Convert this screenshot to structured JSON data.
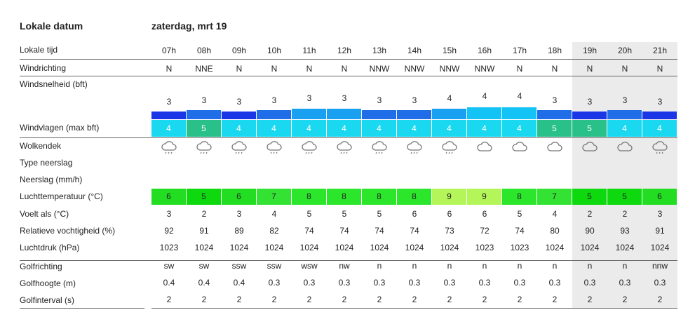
{
  "header": {
    "label": "Lokale datum",
    "date": "zaterdag, mrt 19"
  },
  "labels": {
    "time": "Lokale tijd",
    "wind_dir": "Windrichting",
    "wind_speed": "Windsnelheid (bft)",
    "gusts": "Windvlagen (max bft)",
    "clouds": "Wolkendek",
    "precip_type": "Type neerslag",
    "precip": "Neerslag (mm/h)",
    "temp": "Luchttemperatuur (°C)",
    "feels": "Voelt als (°C)",
    "humidity": "Relatieve vochtigheid (%)",
    "pressure": "Luchtdruk (hPa)",
    "wave_dir": "Golfrichting",
    "wave_height": "Golfhoogte (m)",
    "wave_interval": "Golfinterval (s)"
  },
  "hours": [
    "07h",
    "08h",
    "09h",
    "10h",
    "11h",
    "12h",
    "13h",
    "14h",
    "15h",
    "16h",
    "17h",
    "18h",
    "19h",
    "20h",
    "21h"
  ],
  "night_from_index": 12,
  "wind_dir": [
    "N",
    "NNE",
    "N",
    "N",
    "N",
    "N",
    "NNW",
    "NNW",
    "NNW",
    "NNW",
    "N",
    "N",
    "N",
    "N",
    "N"
  ],
  "wind_speed": [
    3,
    3,
    3,
    3,
    3,
    3,
    3,
    3,
    4,
    4,
    4,
    3,
    3,
    3,
    3
  ],
  "wind_speed_level": [
    1,
    2,
    1,
    2,
    3,
    3,
    2,
    2,
    3,
    4,
    4,
    2,
    1,
    2,
    1
  ],
  "gusts": [
    4,
    5,
    4,
    4,
    4,
    4,
    4,
    4,
    4,
    4,
    4,
    5,
    5,
    4,
    4
  ],
  "clouds": [
    "partly-cloudy-icon",
    "partly-cloudy-icon",
    "partly-cloudy-icon",
    "partly-cloudy-icon",
    "partly-cloudy-icon",
    "partly-cloudy-icon",
    "partly-cloudy-icon",
    "partly-cloudy-icon",
    "partly-cloudy-icon",
    "cloud-icon",
    "cloud-icon",
    "cloud-icon",
    "cloud-icon",
    "cloud-icon",
    "partly-cloudy-icon"
  ],
  "temp": [
    6,
    5,
    6,
    7,
    8,
    8,
    8,
    8,
    9,
    9,
    8,
    7,
    5,
    5,
    6
  ],
  "feels": [
    3,
    2,
    3,
    4,
    5,
    5,
    5,
    6,
    6,
    6,
    5,
    4,
    2,
    2,
    3
  ],
  "humidity": [
    92,
    91,
    89,
    82,
    74,
    74,
    74,
    74,
    73,
    72,
    74,
    80,
    90,
    93,
    91
  ],
  "pressure": [
    1023,
    1024,
    1024,
    1024,
    1024,
    1024,
    1024,
    1024,
    1024,
    1023,
    1023,
    1024,
    1024,
    1024,
    1024
  ],
  "wave_dir": [
    "sw",
    "sw",
    "ssw",
    "ssw",
    "wsw",
    "nw",
    "n",
    "n",
    "n",
    "n",
    "n",
    "n",
    "n",
    "n",
    "nnw"
  ],
  "wave_height": [
    "0.4",
    "0.4",
    "0.4",
    "0.3",
    "0.3",
    "0.3",
    "0.3",
    "0.3",
    "0.3",
    "0.3",
    "0.3",
    "0.3",
    "0.3",
    "0.3",
    "0.3"
  ],
  "wave_interval": [
    2,
    2,
    2,
    2,
    2,
    2,
    2,
    2,
    2,
    2,
    2,
    2,
    2,
    2,
    2
  ],
  "colors": {
    "bft3": "#1a36e6",
    "bft3b": "#1f6ee8",
    "bft4": "#1aa0f0",
    "bft4b": "#14c3f5",
    "gust4": "#1ad8f0",
    "gust5": "#2ac08a",
    "temp5": "#0ed80e",
    "temp6": "#22dd22",
    "temp7": "#33e233",
    "temp8": "#2be62b",
    "temp9": "#b4f55a"
  }
}
